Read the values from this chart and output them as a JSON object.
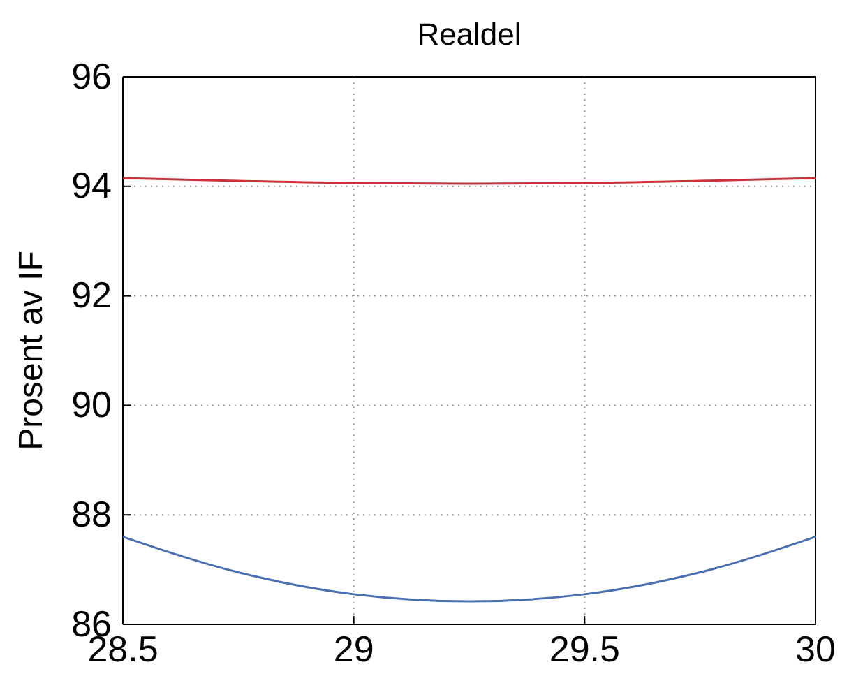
{
  "chart_data": {
    "type": "line",
    "title": "Realdel",
    "ylabel": "Prosent av IF",
    "xlim": [
      28.5,
      30
    ],
    "xticks": [
      28.5,
      29,
      29.5,
      30
    ],
    "ylim": [
      86,
      96
    ],
    "yticks": [
      86,
      88,
      90,
      92,
      94,
      96
    ],
    "grid": true,
    "line_style": "solid",
    "series": [
      {
        "color": "#c8333a",
        "x": [
          28.5,
          28.75,
          29,
          29.25,
          29.5,
          29.75,
          30
        ],
        "values": [
          94.15,
          94.1,
          94.06,
          94.05,
          94.06,
          94.1,
          94.15
        ]
      },
      {
        "color": "#4a6fb0",
        "x": [
          28.5,
          28.75,
          29,
          29.25,
          29.5,
          29.75,
          30
        ],
        "values": [
          87.6,
          86.95,
          86.55,
          86.42,
          86.55,
          86.95,
          87.6
        ]
      }
    ]
  }
}
